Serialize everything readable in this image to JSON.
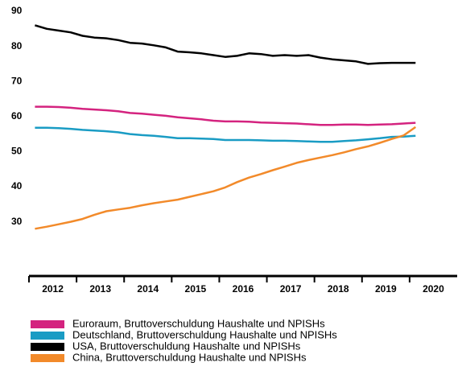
{
  "chart_data": {
    "type": "line",
    "x": [
      2012.125,
      2012.375,
      2012.625,
      2012.875,
      2013.125,
      2013.375,
      2013.625,
      2013.875,
      2014.125,
      2014.375,
      2014.625,
      2014.875,
      2015.125,
      2015.375,
      2015.625,
      2015.875,
      2016.125,
      2016.375,
      2016.625,
      2016.875,
      2017.125,
      2017.375,
      2017.625,
      2017.875,
      2018.125,
      2018.375,
      2018.625,
      2018.875,
      2019.125,
      2019.375,
      2019.625,
      2019.875,
      2020.125
    ],
    "series": [
      {
        "name": "Euroraum, Bruttoverschuldung Haushalte und NPISHs",
        "color": "#d4237f",
        "values": [
          62.8,
          62.8,
          62.7,
          62.5,
          62.2,
          62,
          61.8,
          61.5,
          61,
          60.8,
          60.5,
          60.2,
          59.8,
          59.5,
          59.2,
          58.8,
          58.6,
          58.6,
          58.5,
          58.3,
          58.2,
          58.1,
          58,
          57.8,
          57.6,
          57.6,
          57.7,
          57.7,
          57.6,
          57.7,
          57.8,
          58,
          58.2
        ]
      },
      {
        "name": "Deutschland, Bruttoverschuldung Haushalte und NPISHs",
        "color": "#1a9cc4",
        "values": [
          56.8,
          56.8,
          56.7,
          56.5,
          56.2,
          56,
          55.8,
          55.5,
          55,
          54.7,
          54.5,
          54.2,
          53.8,
          53.8,
          53.7,
          53.6,
          53.3,
          53.3,
          53.3,
          53.2,
          53.1,
          53.1,
          53,
          52.9,
          52.8,
          52.8,
          53,
          53.2,
          53.5,
          53.8,
          54.2,
          54.3,
          54.5
        ]
      },
      {
        "name": "USA, Bruttoverschuldung Haushalte und NPISHs",
        "color": "#000000",
        "values": [
          86,
          85,
          84.5,
          84,
          83,
          82.5,
          82.3,
          81.8,
          81,
          80.8,
          80.3,
          79.7,
          78.5,
          78.3,
          78,
          77.5,
          77,
          77.3,
          78,
          77.8,
          77.3,
          77.5,
          77.3,
          77.5,
          76.8,
          76.3,
          76,
          75.7,
          75,
          75.2,
          75.3,
          75.3,
          75.3
        ]
      },
      {
        "name": "China, Bruttoverschuldung Haushalte und NPISHs",
        "color": "#f28a2a",
        "values": [
          28,
          28.6,
          29.3,
          30,
          30.8,
          32,
          33,
          33.5,
          34,
          34.7,
          35.3,
          35.8,
          36.3,
          37.1,
          37.9,
          38.7,
          39.8,
          41.3,
          42.6,
          43.6,
          44.7,
          45.7,
          46.8,
          47.6,
          48.3,
          49,
          49.8,
          50.7,
          51.5,
          52.5,
          53.6,
          54.6,
          57
        ]
      }
    ],
    "xlim": [
      2012,
      2021
    ],
    "xticks": [
      2012,
      2013,
      2014,
      2015,
      2016,
      2017,
      2018,
      2019,
      2020
    ],
    "ylim": [
      15,
      90
    ],
    "yticks": [
      30,
      40,
      50,
      60,
      70,
      80,
      90
    ]
  }
}
